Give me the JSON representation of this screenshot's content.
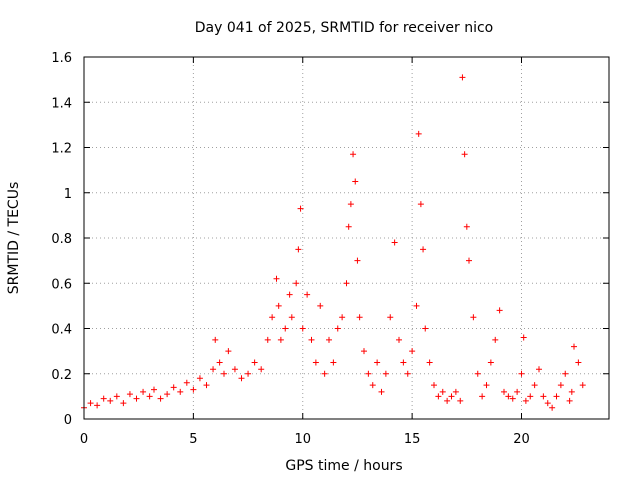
{
  "chart_data": {
    "type": "scatter",
    "title": "Day 041 of 2025, SRMTID for receiver nico",
    "xlabel": "GPS time / hours",
    "ylabel": "SRMTID / TECUs",
    "xlim": [
      0,
      24
    ],
    "ylim": [
      0,
      1.6
    ],
    "xticks": [
      0,
      5,
      10,
      15,
      20
    ],
    "xtick_labels": [
      "0",
      "5",
      "10",
      "15",
      "20"
    ],
    "yticks": [
      0,
      0.2,
      0.4,
      0.6,
      0.8,
      1.0,
      1.2,
      1.4,
      1.6
    ],
    "ytick_labels": [
      "0",
      "0.2",
      "0.4",
      "0.6",
      "0.8",
      "1",
      "1.2",
      "1.4",
      "1.6"
    ],
    "grid": true,
    "marker": "+",
    "color": "#ff0000",
    "series": [
      {
        "name": "SRMTID",
        "x": [
          0.0,
          0.3,
          0.6,
          0.9,
          1.2,
          1.5,
          1.8,
          2.1,
          2.4,
          2.7,
          3.0,
          3.2,
          3.5,
          3.8,
          4.1,
          4.4,
          4.7,
          5.0,
          5.3,
          5.6,
          5.9,
          6.0,
          6.2,
          6.4,
          6.6,
          6.9,
          7.2,
          7.5,
          7.8,
          8.1,
          8.4,
          8.6,
          8.8,
          8.9,
          9.0,
          9.2,
          9.4,
          9.5,
          9.7,
          9.8,
          9.9,
          10.0,
          10.2,
          10.4,
          10.6,
          10.8,
          11.0,
          11.2,
          11.4,
          11.6,
          11.8,
          12.0,
          12.1,
          12.2,
          12.3,
          12.4,
          12.5,
          12.6,
          12.8,
          13.0,
          13.2,
          13.4,
          13.6,
          13.8,
          14.0,
          14.2,
          14.4,
          14.6,
          14.8,
          15.0,
          15.2,
          15.3,
          15.4,
          15.5,
          15.6,
          15.8,
          16.0,
          16.2,
          16.4,
          16.6,
          16.8,
          17.0,
          17.2,
          17.3,
          17.4,
          17.5,
          17.6,
          17.8,
          18.0,
          18.2,
          18.4,
          18.6,
          18.8,
          19.0,
          19.2,
          19.4,
          19.6,
          19.8,
          20.0,
          20.1,
          20.2,
          20.4,
          20.6,
          20.8,
          21.0,
          21.2,
          21.4,
          21.6,
          21.8,
          22.0,
          22.2,
          22.3,
          22.4,
          22.6,
          22.8
        ],
        "y": [
          0.05,
          0.07,
          0.06,
          0.09,
          0.08,
          0.1,
          0.07,
          0.11,
          0.09,
          0.12,
          0.1,
          0.13,
          0.09,
          0.11,
          0.14,
          0.12,
          0.16,
          0.13,
          0.18,
          0.15,
          0.22,
          0.35,
          0.25,
          0.2,
          0.3,
          0.22,
          0.18,
          0.2,
          0.25,
          0.22,
          0.35,
          0.45,
          0.62,
          0.5,
          0.35,
          0.4,
          0.55,
          0.45,
          0.6,
          0.75,
          0.93,
          0.4,
          0.55,
          0.35,
          0.25,
          0.5,
          0.2,
          0.35,
          0.25,
          0.4,
          0.45,
          0.6,
          0.85,
          0.95,
          1.17,
          1.05,
          0.7,
          0.45,
          0.3,
          0.2,
          0.15,
          0.25,
          0.12,
          0.2,
          0.45,
          0.78,
          0.35,
          0.25,
          0.2,
          0.3,
          0.5,
          1.26,
          0.95,
          0.75,
          0.4,
          0.25,
          0.15,
          0.1,
          0.12,
          0.08,
          0.1,
          0.12,
          0.08,
          1.51,
          1.17,
          0.85,
          0.7,
          0.45,
          0.2,
          0.1,
          0.15,
          0.25,
          0.35,
          0.48,
          0.12,
          0.1,
          0.09,
          0.12,
          0.2,
          0.36,
          0.08,
          0.1,
          0.15,
          0.22,
          0.1,
          0.07,
          0.05,
          0.1,
          0.15,
          0.2,
          0.08,
          0.12,
          0.32,
          0.25,
          0.15
        ]
      }
    ]
  }
}
